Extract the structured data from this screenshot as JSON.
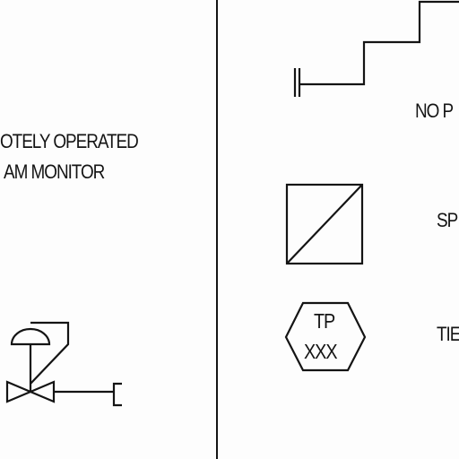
{
  "left_panel": {
    "title_line_1": "OTELY OPERATED",
    "title_line_2": "AM MONITOR"
  },
  "right_panel": {
    "label_no_p": "NO P",
    "label_sp": "SP",
    "label_tie": "TIE",
    "tie_point_top": "TP",
    "tie_point_bottom": "XXX"
  },
  "colors": {
    "ink": "#141414",
    "paper": "#fdfdfd"
  }
}
